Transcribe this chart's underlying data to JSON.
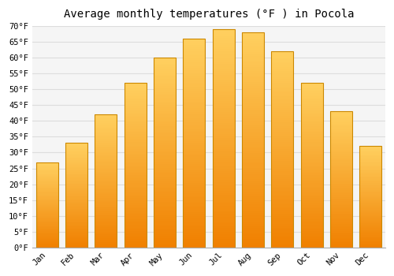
{
  "title": "Average monthly temperatures (°F ) in Pocola",
  "months": [
    "Jan",
    "Feb",
    "Mar",
    "Apr",
    "May",
    "Jun",
    "Jul",
    "Aug",
    "Sep",
    "Oct",
    "Nov",
    "Dec"
  ],
  "values": [
    27,
    33,
    42,
    52,
    60,
    66,
    69,
    68,
    62,
    52,
    43,
    32
  ],
  "bar_color": "#FFA500",
  "bar_color_top": "#FFD060",
  "bar_color_bottom": "#F08000",
  "bar_edge_color": "#CC8800",
  "ylim": [
    0,
    70
  ],
  "yticks": [
    0,
    5,
    10,
    15,
    20,
    25,
    30,
    35,
    40,
    45,
    50,
    55,
    60,
    65,
    70
  ],
  "ytick_labels": [
    "0°F",
    "5°F",
    "10°F",
    "15°F",
    "20°F",
    "25°F",
    "30°F",
    "35°F",
    "40°F",
    "45°F",
    "50°F",
    "55°F",
    "60°F",
    "65°F",
    "70°F"
  ],
  "background_color": "#FFFFFF",
  "plot_bg_color": "#F5F5F5",
  "grid_color": "#DDDDDD",
  "title_fontsize": 10,
  "tick_fontsize": 7.5,
  "bar_width": 0.75
}
